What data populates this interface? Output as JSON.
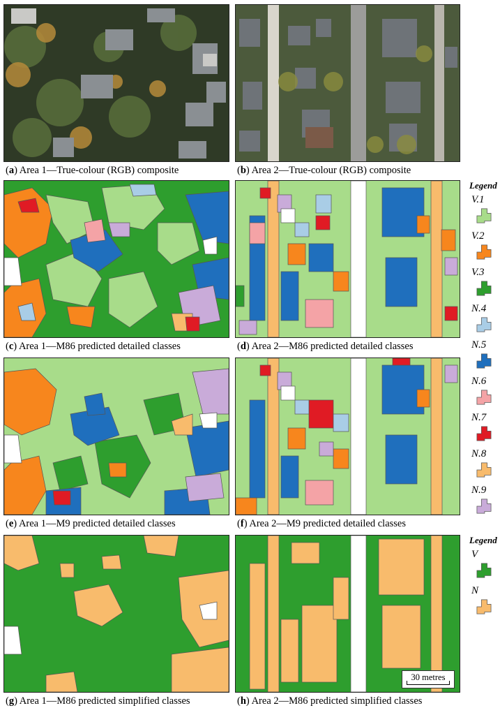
{
  "captions": {
    "a": {
      "letter": "a",
      "text": "Area 1—True-colour (RGB) composite"
    },
    "b": {
      "letter": "b",
      "text": "Area 2—True-colour (RGB) composite"
    },
    "c": {
      "letter": "c",
      "text": "Area 1—M86 predicted detailed classes"
    },
    "d": {
      "letter": "d",
      "text": "Area 2—M86 predicted detailed classes"
    },
    "e": {
      "letter": "e",
      "text": "Area 1—M9 predicted detailed classes"
    },
    "f": {
      "letter": "f",
      "text": "Area 2—M9 predicted detailed classes"
    },
    "g": {
      "letter": "g",
      "text": "Area 1—M86 predicted simplified classes"
    },
    "h": {
      "letter": "h",
      "text": "Area 2—M86 predicted simplified classes"
    }
  },
  "legend_detailed": {
    "title": "Legend",
    "items": [
      {
        "label": "V.1",
        "color": "#a8dc8a"
      },
      {
        "label": "V.2",
        "color": "#f7861d"
      },
      {
        "label": "V.3",
        "color": "#2e9e2e"
      },
      {
        "label": "N.4",
        "color": "#a9cde6"
      },
      {
        "label": "N.5",
        "color": "#1f6fbd"
      },
      {
        "label": "N.6",
        "color": "#f4a3a6"
      },
      {
        "label": "N.7",
        "color": "#e01b24"
      },
      {
        "label": "N.8",
        "color": "#f8bb6c"
      },
      {
        "label": "N.9",
        "color": "#c9abd9"
      }
    ]
  },
  "legend_simplified": {
    "title": "Legend",
    "items": [
      {
        "label": "V",
        "color": "#2e9e2e"
      },
      {
        "label": "N",
        "color": "#f8bb6c"
      }
    ]
  },
  "scale_bar": {
    "label": "30 metres"
  }
}
